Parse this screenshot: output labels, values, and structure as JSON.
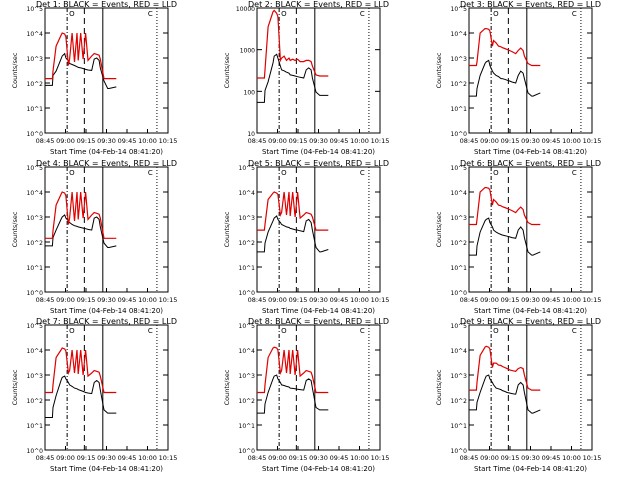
{
  "colors": {
    "events": "#000000",
    "lld": "#e00000",
    "axis": "#000000",
    "background": "#ffffff"
  },
  "common": {
    "ylabel": "Counts/sec",
    "xlabel": "Start Time (04-Feb-14 08:41:20)",
    "xticks": [
      "08:45",
      "09:00",
      "09:15",
      "09:30",
      "09:45",
      "10:00",
      "10:15"
    ],
    "yscale": "log",
    "markers": {
      "start_label": "O",
      "end_label": "C"
    }
  },
  "chart_data": [
    {
      "type": "line",
      "title": "Det 1: BLACK = Events, RED = LLD",
      "yticks": [
        "10^0",
        "10^1",
        "10^2",
        "10^3",
        "10^4",
        "10^5"
      ],
      "ylim": [
        1,
        100000
      ],
      "xlim_minutes": [
        0,
        100
      ],
      "x_minutes": [
        0,
        6,
        6.5,
        9,
        13,
        14,
        16,
        17,
        19,
        20,
        22,
        24,
        26,
        27,
        29,
        31,
        33,
        35,
        38,
        40,
        42,
        44,
        45,
        48,
        51,
        52,
        58
      ],
      "series": [
        {
          "name": "BLACK = Events",
          "values": [
            80,
            80,
            200,
            300,
            900,
            1200,
            1500,
            1000,
            800,
            600,
            550,
            500,
            450,
            420,
            400,
            380,
            350,
            330,
            320,
            900,
            1000,
            800,
            400,
            120,
            60,
            60,
            70
          ]
        },
        {
          "name": "RED = LLD",
          "values": [
            150,
            150,
            300,
            3000,
            8000,
            10000,
            9000,
            7000,
            500,
            900,
            10000,
            700,
            10000,
            800,
            10000,
            900,
            10000,
            800,
            1200,
            1500,
            1400,
            1300,
            900,
            150,
            150,
            150,
            150
          ]
        }
      ]
    },
    {
      "type": "line",
      "title": "Det 2: BLACK = Events, RED = LLD",
      "yticks": [
        "10",
        "100",
        "1000",
        "10000"
      ],
      "ylim": [
        10,
        15000
      ],
      "xlim_minutes": [
        0,
        100
      ],
      "x_minutes": [
        0,
        6,
        6.5,
        9,
        13,
        14,
        16,
        17,
        19,
        20,
        22,
        24,
        26,
        27,
        29,
        31,
        33,
        35,
        38,
        40,
        42,
        44,
        45,
        48,
        51,
        52,
        58
      ],
      "series": [
        {
          "name": "BLACK = Events",
          "values": [
            60,
            60,
            120,
            200,
            600,
            900,
            1000,
            800,
            500,
            400,
            380,
            350,
            330,
            300,
            290,
            280,
            270,
            260,
            250,
            400,
            450,
            400,
            250,
            110,
            90,
            90,
            90
          ]
        },
        {
          "name": "RED = LLD",
          "values": [
            250,
            250,
            400,
            5000,
            12000,
            13000,
            11000,
            9000,
            700,
            800,
            900,
            700,
            800,
            700,
            750,
            700,
            750,
            650,
            650,
            700,
            700,
            650,
            500,
            300,
            280,
            280,
            280
          ]
        }
      ]
    },
    {
      "type": "line",
      "title": "Det 3: BLACK = Events, RED = LLD",
      "yticks": [
        "10^0",
        "10^1",
        "10^2",
        "10^3",
        "10^4",
        "10^5"
      ],
      "ylim": [
        1,
        100000
      ],
      "xlim_minutes": [
        0,
        100
      ],
      "x_minutes": [
        0,
        6,
        6.5,
        9,
        13,
        14,
        16,
        17,
        19,
        20,
        22,
        24,
        26,
        27,
        29,
        31,
        33,
        35,
        38,
        40,
        42,
        44,
        45,
        48,
        51,
        52,
        58
      ],
      "series": [
        {
          "name": "BLACK = Events",
          "values": [
            30,
            30,
            60,
            200,
            600,
            700,
            800,
            500,
            300,
            250,
            200,
            180,
            150,
            150,
            140,
            130,
            120,
            110,
            100,
            200,
            300,
            250,
            150,
            40,
            30,
            30,
            40
          ]
        },
        {
          "name": "RED = LLD",
          "values": [
            500,
            500,
            700,
            10000,
            15000,
            15000,
            14000,
            12000,
            3000,
            5000,
            4000,
            3000,
            2800,
            2600,
            2400,
            2200,
            2000,
            1800,
            1500,
            2000,
            2500,
            2000,
            1200,
            600,
            500,
            500,
            500
          ]
        }
      ]
    },
    {
      "type": "line",
      "title": "Det 4: BLACK = Events, RED = LLD",
      "yticks": [
        "10^0",
        "10^1",
        "10^2",
        "10^3",
        "10^4",
        "10^5"
      ],
      "ylim": [
        1,
        100000
      ],
      "xlim_minutes": [
        0,
        100
      ],
      "x_minutes": [
        0,
        6,
        6.5,
        9,
        13,
        14,
        16,
        17,
        19,
        20,
        22,
        24,
        26,
        27,
        29,
        31,
        33,
        35,
        38,
        40,
        42,
        44,
        45,
        48,
        51,
        52,
        58
      ],
      "series": [
        {
          "name": "BLACK = Events",
          "values": [
            70,
            70,
            150,
            300,
            800,
            1000,
            1200,
            900,
            700,
            600,
            500,
            450,
            420,
            400,
            380,
            360,
            340,
            320,
            300,
            900,
            1000,
            800,
            400,
            90,
            60,
            60,
            70
          ]
        },
        {
          "name": "RED = LLD",
          "values": [
            140,
            140,
            280,
            3000,
            8000,
            10000,
            9000,
            7000,
            500,
            900,
            10000,
            700,
            10000,
            800,
            10000,
            900,
            10000,
            800,
            1200,
            1500,
            1400,
            1300,
            900,
            140,
            140,
            140,
            140
          ]
        }
      ]
    },
    {
      "type": "line",
      "title": "Det 5: BLACK = Events, RED = LLD",
      "yticks": [
        "10^0",
        "10^1",
        "10^2",
        "10^3",
        "10^4",
        "10^5"
      ],
      "ylim": [
        1,
        100000
      ],
      "xlim_minutes": [
        0,
        100
      ],
      "x_minutes": [
        0,
        6,
        6.5,
        9,
        13,
        14,
        16,
        17,
        19,
        20,
        22,
        24,
        26,
        27,
        29,
        31,
        33,
        35,
        38,
        40,
        42,
        44,
        45,
        48,
        51,
        52,
        58
      ],
      "series": [
        {
          "name": "BLACK = Events",
          "values": [
            40,
            40,
            90,
            250,
            700,
            900,
            1100,
            800,
            600,
            500,
            450,
            400,
            380,
            350,
            330,
            310,
            300,
            280,
            260,
            700,
            800,
            600,
            300,
            60,
            40,
            40,
            50
          ]
        },
        {
          "name": "RED = LLD",
          "values": [
            300,
            300,
            500,
            5000,
            9000,
            10000,
            9000,
            8000,
            1200,
            1500,
            10000,
            1200,
            10000,
            1100,
            10000,
            1000,
            10000,
            900,
            1200,
            1500,
            1400,
            1300,
            1000,
            300,
            300,
            300,
            300
          ]
        }
      ]
    },
    {
      "type": "line",
      "title": "Det 6: BLACK = Events, RED = LLD",
      "yticks": [
        "10^0",
        "10^1",
        "10^2",
        "10^3",
        "10^4",
        "10^5"
      ],
      "ylim": [
        1,
        100000
      ],
      "xlim_minutes": [
        0,
        100
      ],
      "x_minutes": [
        0,
        6,
        6.5,
        9,
        13,
        14,
        16,
        17,
        19,
        20,
        22,
        24,
        26,
        27,
        29,
        31,
        33,
        35,
        38,
        40,
        42,
        44,
        45,
        48,
        51,
        52,
        58
      ],
      "series": [
        {
          "name": "BLACK = Events",
          "values": [
            30,
            30,
            70,
            250,
            700,
            800,
            900,
            600,
            400,
            300,
            250,
            220,
            200,
            190,
            180,
            170,
            160,
            150,
            140,
            300,
            400,
            300,
            150,
            40,
            30,
            30,
            40
          ]
        },
        {
          "name": "RED = LLD",
          "values": [
            500,
            500,
            800,
            10000,
            15000,
            15000,
            14000,
            12000,
            3000,
            5000,
            4000,
            3000,
            2800,
            2600,
            2400,
            2200,
            2000,
            1800,
            1500,
            2000,
            2500,
            2000,
            1200,
            600,
            500,
            500,
            500
          ]
        }
      ]
    },
    {
      "type": "line",
      "title": "Det 7: BLACK = Events, RED = LLD",
      "yticks": [
        "10^0",
        "10^1",
        "10^2",
        "10^3",
        "10^4",
        "10^5"
      ],
      "ylim": [
        1,
        100000
      ],
      "xlim_minutes": [
        0,
        100
      ],
      "x_minutes": [
        0,
        6,
        6.5,
        9,
        13,
        14,
        16,
        17,
        19,
        20,
        22,
        24,
        26,
        27,
        29,
        31,
        33,
        35,
        38,
        40,
        42,
        44,
        45,
        48,
        51,
        52,
        58
      ],
      "series": [
        {
          "name": "BLACK = Events",
          "values": [
            20,
            20,
            50,
            150,
            600,
            800,
            900,
            700,
            500,
            400,
            350,
            300,
            280,
            260,
            240,
            220,
            200,
            190,
            180,
            500,
            600,
            500,
            250,
            40,
            30,
            30,
            30
          ]
        },
        {
          "name": "RED = LLD",
          "values": [
            200,
            200,
            400,
            5000,
            10000,
            12000,
            11000,
            9000,
            1200,
            1500,
            10000,
            1200,
            10000,
            1100,
            10000,
            1000,
            10000,
            900,
            1200,
            1500,
            1400,
            1300,
            900,
            200,
            200,
            200,
            200
          ]
        }
      ]
    },
    {
      "type": "line",
      "title": "Det 8: BLACK = Events, RED = LLD",
      "yticks": [
        "10^0",
        "10^1",
        "10^2",
        "10^3",
        "10^4",
        "10^5"
      ],
      "ylim": [
        1,
        100000
      ],
      "xlim_minutes": [
        0,
        100
      ],
      "x_minutes": [
        0,
        6,
        6.5,
        9,
        13,
        14,
        16,
        17,
        19,
        20,
        22,
        24,
        26,
        27,
        29,
        31,
        33,
        35,
        38,
        40,
        42,
        44,
        45,
        48,
        51,
        52,
        58
      ],
      "series": [
        {
          "name": "BLACK = Events",
          "values": [
            30,
            30,
            70,
            200,
            700,
            900,
            1000,
            700,
            500,
            400,
            380,
            350,
            330,
            300,
            290,
            280,
            270,
            260,
            250,
            600,
            700,
            600,
            300,
            50,
            40,
            40,
            40
          ]
        },
        {
          "name": "RED = LLD",
          "values": [
            200,
            200,
            400,
            5000,
            12000,
            13000,
            12000,
            10000,
            1200,
            1500,
            10000,
            1200,
            10000,
            1100,
            10000,
            1000,
            10000,
            900,
            1200,
            1500,
            1400,
            1300,
            900,
            200,
            200,
            200,
            200
          ]
        }
      ]
    },
    {
      "type": "line",
      "title": "Det 9: BLACK = Events, RED = LLD",
      "yticks": [
        "10^0",
        "10^1",
        "10^2",
        "10^3",
        "10^4",
        "10^5"
      ],
      "ylim": [
        1,
        100000
      ],
      "xlim_minutes": [
        0,
        100
      ],
      "x_minutes": [
        0,
        6,
        6.5,
        9,
        13,
        14,
        16,
        17,
        19,
        20,
        22,
        24,
        26,
        27,
        29,
        31,
        33,
        35,
        38,
        40,
        42,
        44,
        45,
        48,
        51,
        52,
        58
      ],
      "series": [
        {
          "name": "BLACK = Events",
          "values": [
            40,
            40,
            80,
            200,
            700,
            900,
            1000,
            700,
            500,
            400,
            300,
            280,
            260,
            240,
            220,
            200,
            190,
            180,
            170,
            400,
            500,
            400,
            200,
            40,
            30,
            30,
            40
          ]
        },
        {
          "name": "RED = LLD",
          "values": [
            250,
            250,
            500,
            6000,
            13000,
            14000,
            13000,
            11000,
            2000,
            3000,
            3000,
            2500,
            2400,
            2200,
            2000,
            1800,
            1600,
            1500,
            1400,
            1800,
            2000,
            1800,
            1000,
            300,
            250,
            250,
            250
          ]
        }
      ]
    }
  ]
}
